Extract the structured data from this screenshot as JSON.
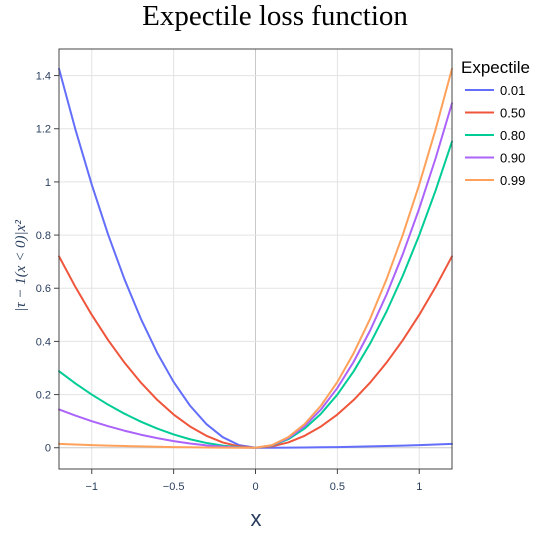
{
  "chart_data": {
    "type": "line",
    "title": "Expectile loss function",
    "xlabel": "x",
    "ylabel": "|τ − 1(x < 0)|x²",
    "xlim": [
      -1.2,
      1.2
    ],
    "ylim": [
      -0.08,
      1.5
    ],
    "xticks": [
      -1,
      -0.5,
      0,
      0.5,
      1
    ],
    "xtick_labels": [
      "−1",
      "−0.5",
      "0",
      "0.5",
      "1"
    ],
    "yticks": [
      0,
      0.2,
      0.4,
      0.6,
      0.8,
      1,
      1.2,
      1.4
    ],
    "ytick_labels": [
      "0",
      "0.2",
      "0.4",
      "0.6",
      "0.8",
      "1",
      "1.2",
      "1.4"
    ],
    "grid": true,
    "legend": {
      "title": "Expectile",
      "position": "right"
    },
    "x": [
      -1.2,
      -1.1,
      -1.0,
      -0.9,
      -0.8,
      -0.7,
      -0.6,
      -0.5,
      -0.4,
      -0.3,
      -0.2,
      -0.1,
      0,
      0.1,
      0.2,
      0.3,
      0.4,
      0.5,
      0.6,
      0.7,
      0.8,
      0.9,
      1.0,
      1.1,
      1.2
    ],
    "series": [
      {
        "name": "0.01",
        "color": "#636efa",
        "values": [
          1.4256,
          1.1979,
          0.99,
          0.8019,
          0.6336,
          0.4851,
          0.3564,
          0.2475,
          0.1584,
          0.0891,
          0.0396,
          0.0099,
          0,
          0.0001,
          0.0004,
          0.0009,
          0.0016,
          0.0025,
          0.0036,
          0.0049,
          0.0064,
          0.0081,
          0.01,
          0.0121,
          0.0144
        ]
      },
      {
        "name": "0.50",
        "color": "#EF553B",
        "values": [
          0.72,
          0.605,
          0.5,
          0.405,
          0.32,
          0.245,
          0.18,
          0.125,
          0.08,
          0.045,
          0.02,
          0.005,
          0,
          0.005,
          0.02,
          0.045,
          0.08,
          0.125,
          0.18,
          0.245,
          0.32,
          0.405,
          0.5,
          0.605,
          0.72
        ]
      },
      {
        "name": "0.80",
        "color": "#00cc96",
        "values": [
          0.288,
          0.242,
          0.2,
          0.162,
          0.128,
          0.098,
          0.072,
          0.05,
          0.032,
          0.018,
          0.008,
          0.002,
          0,
          0.008,
          0.032,
          0.072,
          0.128,
          0.2,
          0.288,
          0.392,
          0.512,
          0.648,
          0.8,
          0.968,
          1.152
        ]
      },
      {
        "name": "0.90",
        "color": "#ab63fa",
        "values": [
          0.144,
          0.121,
          0.1,
          0.081,
          0.064,
          0.049,
          0.036,
          0.025,
          0.016,
          0.009,
          0.004,
          0.001,
          0,
          0.009,
          0.036,
          0.081,
          0.144,
          0.225,
          0.324,
          0.441,
          0.576,
          0.729,
          0.9,
          1.089,
          1.296
        ]
      },
      {
        "name": "0.99",
        "color": "#FFA15A",
        "values": [
          0.0144,
          0.0121,
          0.01,
          0.0081,
          0.0064,
          0.0049,
          0.0036,
          0.0025,
          0.0016,
          0.0009,
          0.0004,
          0.0001,
          0,
          0.0099,
          0.0396,
          0.0891,
          0.1584,
          0.2475,
          0.3564,
          0.4851,
          0.6336,
          0.8019,
          0.99,
          1.1979,
          1.4256
        ]
      }
    ]
  }
}
